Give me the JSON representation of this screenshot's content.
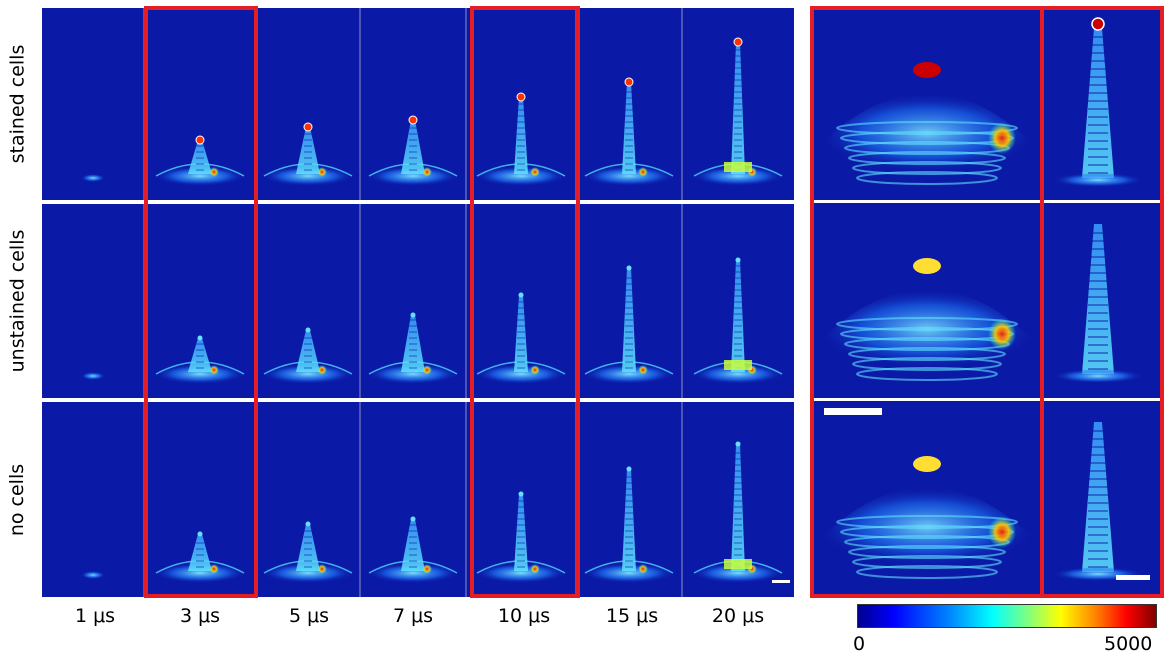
{
  "row_labels": [
    "stained cells",
    "unstained cells",
    "no cells"
  ],
  "time_labels": [
    "1 μs",
    "3 μs",
    "5 μs",
    "7 μs",
    "10 μs",
    "15 μs",
    "20 μs"
  ],
  "colorbar": {
    "min_label": "0",
    "max_label": "5000"
  },
  "colors": {
    "background": "#0b1aa6",
    "highlight_box": "#e41e24",
    "separator": "#ffffff"
  },
  "highlighted_times": [
    "3 μs",
    "10 μs"
  ]
}
